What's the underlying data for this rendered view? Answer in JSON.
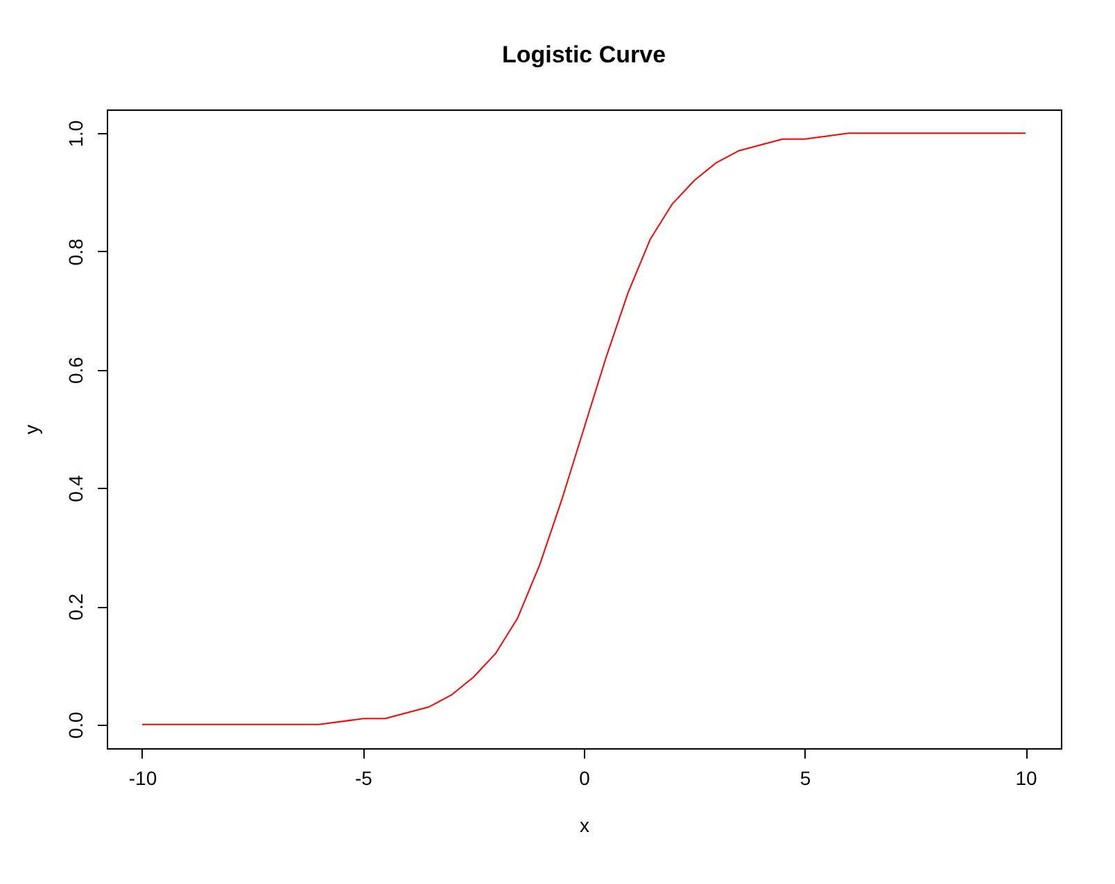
{
  "chart_data": {
    "type": "line",
    "title": "Logistic Curve",
    "xlabel": "x",
    "ylabel": "y",
    "x": [
      -10,
      -9,
      -8,
      -7,
      -6,
      -5,
      -4.5,
      -4,
      -3.5,
      -3,
      -2.5,
      -2,
      -1.5,
      -1,
      -0.5,
      0,
      0.5,
      1,
      1.5,
      2,
      2.5,
      3,
      3.5,
      4,
      4.5,
      5,
      6,
      7,
      8,
      9,
      10
    ],
    "series": [
      {
        "color": "#ff0000",
        "values": [
          0,
          0,
          0,
          0,
          0,
          0.01,
          0.01,
          0.02,
          0.03,
          0.05,
          0.08,
          0.12,
          0.18,
          0.27,
          0.38,
          0.5,
          0.62,
          0.73,
          0.82,
          0.88,
          0.92,
          0.95,
          0.97,
          0.98,
          0.99,
          0.99,
          1,
          1,
          1,
          1,
          1
        ]
      }
    ],
    "xlim": [
      -10.8,
      10.8
    ],
    "ylim": [
      -0.04,
      1.04
    ],
    "xticks": [
      -10,
      -5,
      0,
      5,
      10
    ],
    "yticks": [
      {
        "value": 0,
        "label": "0.0"
      },
      {
        "value": 0.2,
        "label": "0.2"
      },
      {
        "value": 0.4,
        "label": "0.4"
      },
      {
        "value": 0.6,
        "label": "0.6"
      },
      {
        "value": 0.8,
        "label": "0.8"
      },
      {
        "value": 1,
        "label": "1.0"
      }
    ],
    "grid": false,
    "marker": "none",
    "line_style": "solid"
  }
}
